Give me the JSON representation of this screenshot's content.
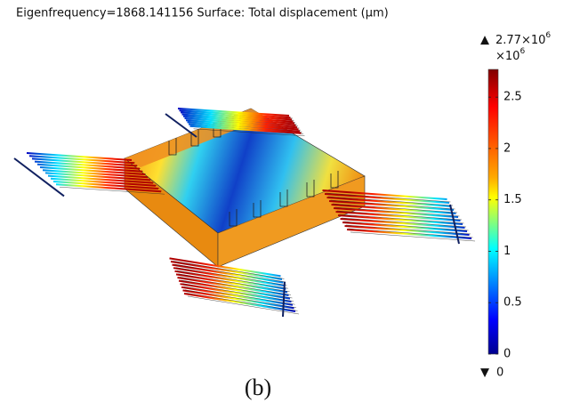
{
  "header": {
    "title": "Eigenfrequency=1868.141156   Surface: Total displacement (μm)"
  },
  "colorbar": {
    "range": [
      0,
      2.77
    ],
    "ticks": [
      0,
      0.5,
      1,
      1.5,
      2,
      2.5
    ],
    "max_label": "2.77×10",
    "max_exponent": "6",
    "scale_label": "×10",
    "scale_exponent": "6",
    "min_label": "0"
  },
  "caption": "(b)"
}
